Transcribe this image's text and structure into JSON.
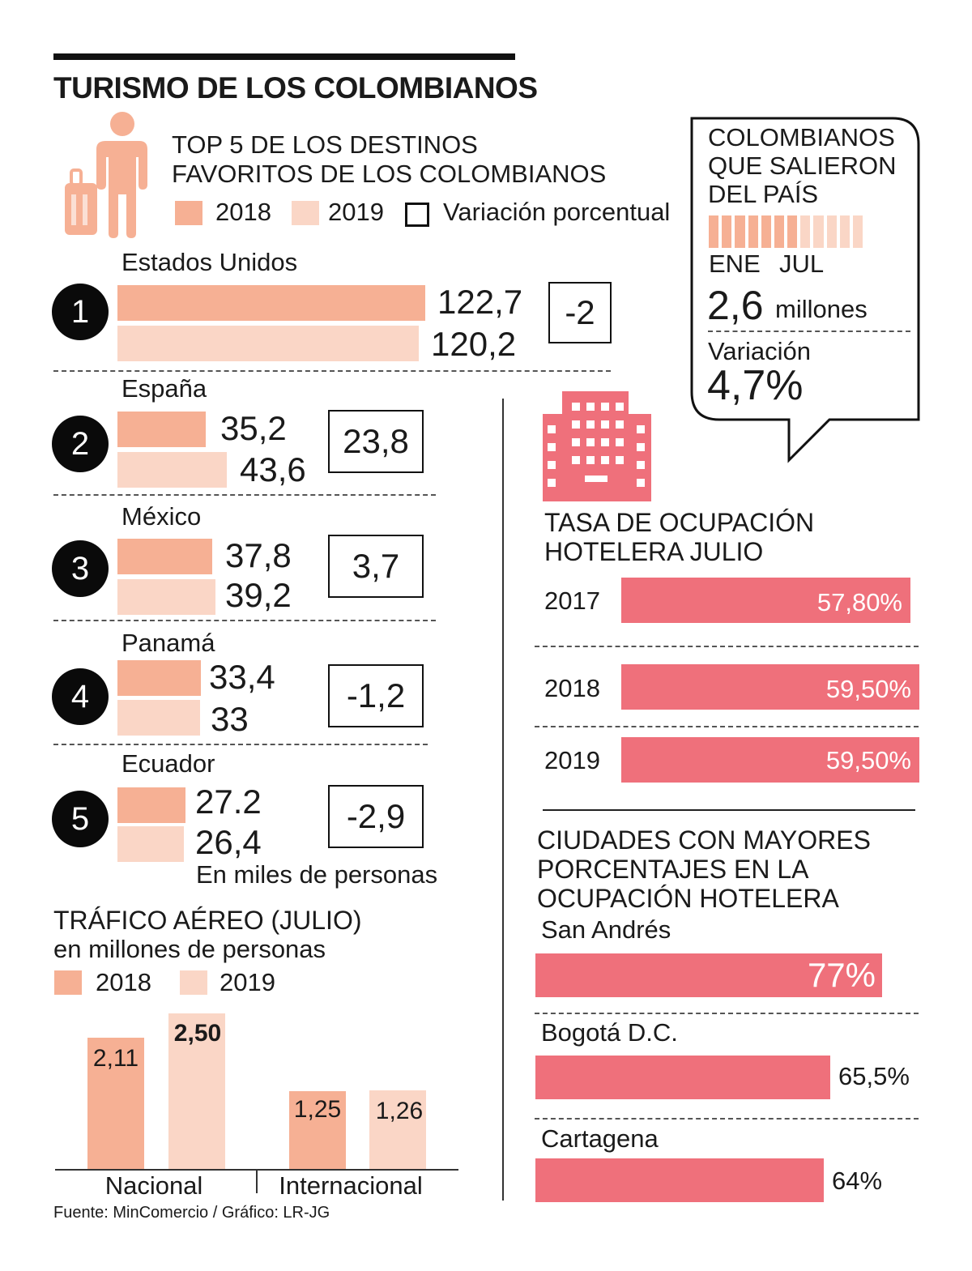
{
  "title": "TURISMO DE LOS COLOMBIANOS",
  "colors": {
    "c2018": "#f6b094",
    "c2019": "#fad6c6",
    "hotel": "#ef707b",
    "ink": "#111111"
  },
  "top5": {
    "title_line1": "TOP 5 DE LOS DESTINOS",
    "title_line2": "FAVORITOS DE LOS COLOMBIANOS",
    "legend": {
      "y2018": "2018",
      "y2019": "2019",
      "variation": "Variación porcentual"
    },
    "unit_note": "En miles de personas",
    "ranks": [
      "1",
      "2",
      "3",
      "4",
      "5"
    ]
  },
  "outbound": {
    "title_line1": "COLOMBIANOS",
    "title_line2": "QUE SALIERON",
    "title_line3": "DEL PAÍS",
    "months_filled": 7,
    "months_total": 12,
    "label_start": "ENE",
    "label_end": "JUL",
    "value": "2,6",
    "value_unit": "millones",
    "variation_label": "Variación",
    "variation_value": "4,7%"
  },
  "hotel": {
    "title_line1": "TASA DE OCUPACIÓN",
    "title_line2": "HOTELERA JULIO"
  },
  "cities": {
    "title_line1": "CIUDADES CON MAYORES",
    "title_line2": "PORCENTAJES EN LA",
    "title_line3": "OCUPACIÓN HOTELERA"
  },
  "air": {
    "title": "TRÁFICO AÉREO (JULIO)",
    "subtitle": "en millones de personas",
    "legend": {
      "y2018": "2018",
      "y2019": "2019"
    }
  },
  "source": "Fuente: MinComercio / Gráfico: LR-JG",
  "chart_data": [
    {
      "type": "bar",
      "title": "TOP 5 DE LOS DESTINOS FAVORITOS DE LOS COLOMBIANOS",
      "orientation": "horizontal",
      "categories": [
        "Estados Unidos",
        "España",
        "México",
        "Panamá",
        "Ecuador"
      ],
      "series": [
        {
          "name": "2018",
          "values": [
            122.7,
            35.2,
            37.8,
            33.4,
            27.2
          ],
          "labels": [
            "122,7",
            "35,2",
            "37,8",
            "33,4",
            "27.2"
          ]
        },
        {
          "name": "2019",
          "values": [
            120.2,
            43.6,
            39.2,
            33,
            26.4
          ],
          "labels": [
            "120,2",
            "43,6",
            "39,2",
            "33",
            "26,4"
          ]
        }
      ],
      "variation": [
        "-2",
        "23,8",
        "3,7",
        "-1,2",
        "-2,9"
      ],
      "unit": "En miles de personas"
    },
    {
      "type": "bar",
      "title": "TASA DE OCUPACIÓN HOTELERA JULIO",
      "orientation": "horizontal",
      "categories": [
        "2017",
        "2018",
        "2019"
      ],
      "values": [
        57.8,
        59.5,
        59.5
      ],
      "labels": [
        "57,80%",
        "59,50%",
        "59,50%"
      ]
    },
    {
      "type": "bar",
      "title": "CIUDADES CON MAYORES PORCENTAJES EN LA OCUPACIÓN HOTELERA",
      "orientation": "horizontal",
      "categories": [
        "San Andrés",
        "Bogotá D.C.",
        "Cartagena"
      ],
      "values": [
        77,
        65.5,
        64
      ],
      "labels": [
        "77%",
        "65,5%",
        "64%"
      ]
    },
    {
      "type": "bar",
      "title": "TRÁFICO AÉREO (JULIO)",
      "subtitle": "en millones de personas",
      "categories": [
        "Nacional",
        "Internacional"
      ],
      "series": [
        {
          "name": "2018",
          "values": [
            2.11,
            1.25
          ],
          "labels": [
            "2,11",
            "1,25"
          ]
        },
        {
          "name": "2019",
          "values": [
            2.5,
            1.26
          ],
          "labels": [
            "2,50",
            "1,26"
          ]
        }
      ]
    }
  ]
}
